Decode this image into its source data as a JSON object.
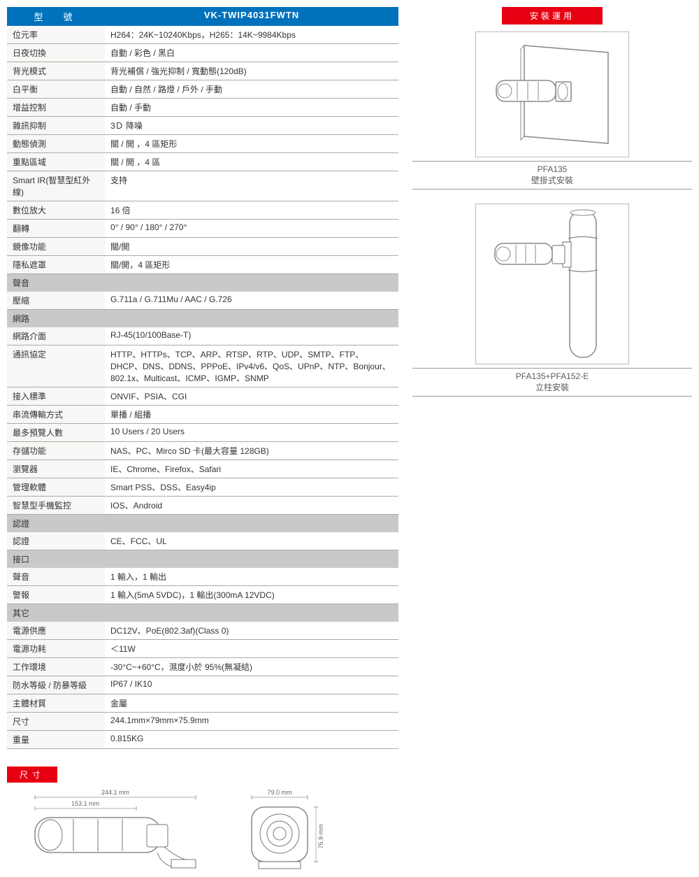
{
  "header": {
    "model_label": "型　號",
    "product": "VK-TWIP4031FWTN",
    "install_label": "安裝運用"
  },
  "specs": [
    {
      "k": "位元率",
      "v": "H264：24K~10240Kbps，H265：14K~9984Kbps"
    },
    {
      "k": "日夜切換",
      "v": "自動 / 彩色 / 黑白"
    },
    {
      "k": "背光模式",
      "v": "背光補償 / 強光抑制 / 寬動態(120dB)"
    },
    {
      "k": "白平衡",
      "v": "自動 / 自然 / 路燈 / 戶外 / 手動"
    },
    {
      "k": "增益控制",
      "v": "自動 / 手動"
    },
    {
      "k": "雜訊抑制",
      "v": "3Ｄ 降噪"
    },
    {
      "k": "動態偵測",
      "v": "關 / 開 ，4 區矩形"
    },
    {
      "k": "重點區域",
      "v": "關 / 開 ，4 區"
    },
    {
      "k": "Smart IR(智慧型紅外線)",
      "v": "支持"
    },
    {
      "k": "數位放大",
      "v": "16 倍"
    },
    {
      "k": "翻轉",
      "v": "0° / 90° / 180° / 270°"
    },
    {
      "k": "鏡像功能",
      "v": "關/開"
    },
    {
      "k": "隱私遮罩",
      "v": "關/開，4 區矩形"
    }
  ],
  "audio_section": "聲音",
  "audio": [
    {
      "k": "壓縮",
      "v": "G.711a / G.711Mu / AAC / G.726"
    }
  ],
  "net_section": "網路",
  "net": [
    {
      "k": "網路介面",
      "v": "RJ-45(10/100Base-T)"
    },
    {
      "k": "通訊協定",
      "v": "HTTP、HTTPs、TCP、ARP、RTSP、RTP、UDP、SMTP、FTP、DHCP、DNS、DDNS、PPPoE、IPv4/v6、QoS、UPnP、NTP、Bonjour、802.1x、Multicast、ICMP、IGMP、SNMP"
    },
    {
      "k": "接入標準",
      "v": "ONVIF、PSIA、CGI"
    },
    {
      "k": "串流傳輸方式",
      "v": "單播 / 組播"
    },
    {
      "k": "最多預覽人數",
      "v": "10 Users / 20 Users"
    },
    {
      "k": "存儲功能",
      "v": "NAS、PC、Mirco SD 卡(最大容量 128GB)"
    },
    {
      "k": "瀏覽器",
      "v": "IE、Chrome、Firefox、Safari"
    },
    {
      "k": "管理軟體",
      "v": "Smart PSS、DSS、Easy4ip"
    },
    {
      "k": "智慧型手機監控",
      "v": "IOS、Android"
    }
  ],
  "cert_section": "認證",
  "cert": [
    {
      "k": "認證",
      "v": "CE、FCC、UL"
    }
  ],
  "io_section": "接口",
  "io": [
    {
      "k": "聲音",
      "v": "1 輸入，1 輸出"
    },
    {
      "k": "警報",
      "v": "1 輸入(5mA 5VDC)，1 輸出(300mA 12VDC)"
    }
  ],
  "other_section": "其它",
  "other": [
    {
      "k": "電源供應",
      "v": "DC12V、PoE(802.3af)(Class 0)"
    },
    {
      "k": "電源功耗",
      "v": "＜11W"
    },
    {
      "k": "工作環境",
      "v": "-30°C~+60°C，濕度小於 95%(無凝結)"
    },
    {
      "k": "防水等級 / 防暴等級",
      "v": "IP67 / IK10"
    },
    {
      "k": "主體材質",
      "v": "金屬"
    },
    {
      "k": "尺寸",
      "v": "244.1mm×79mm×75.9mm"
    },
    {
      "k": "重量",
      "v": "0.815KG"
    }
  ],
  "dim_label": "尺寸",
  "dim": {
    "w": "244.1 mm",
    "w2": "153.1 mm",
    "fw": "79.0 mm",
    "fh": "75.9 mm"
  },
  "install": [
    {
      "title": "PFA135",
      "sub": "壁掛式安裝"
    },
    {
      "title": "PFA135+PFA152-E",
      "sub": "立柱安裝"
    }
  ],
  "colors": {
    "blue": "#0072bc",
    "red": "#e60012",
    "section": "#c9cac8",
    "rowbg": "#f7f7f5",
    "border": "#aaa"
  }
}
